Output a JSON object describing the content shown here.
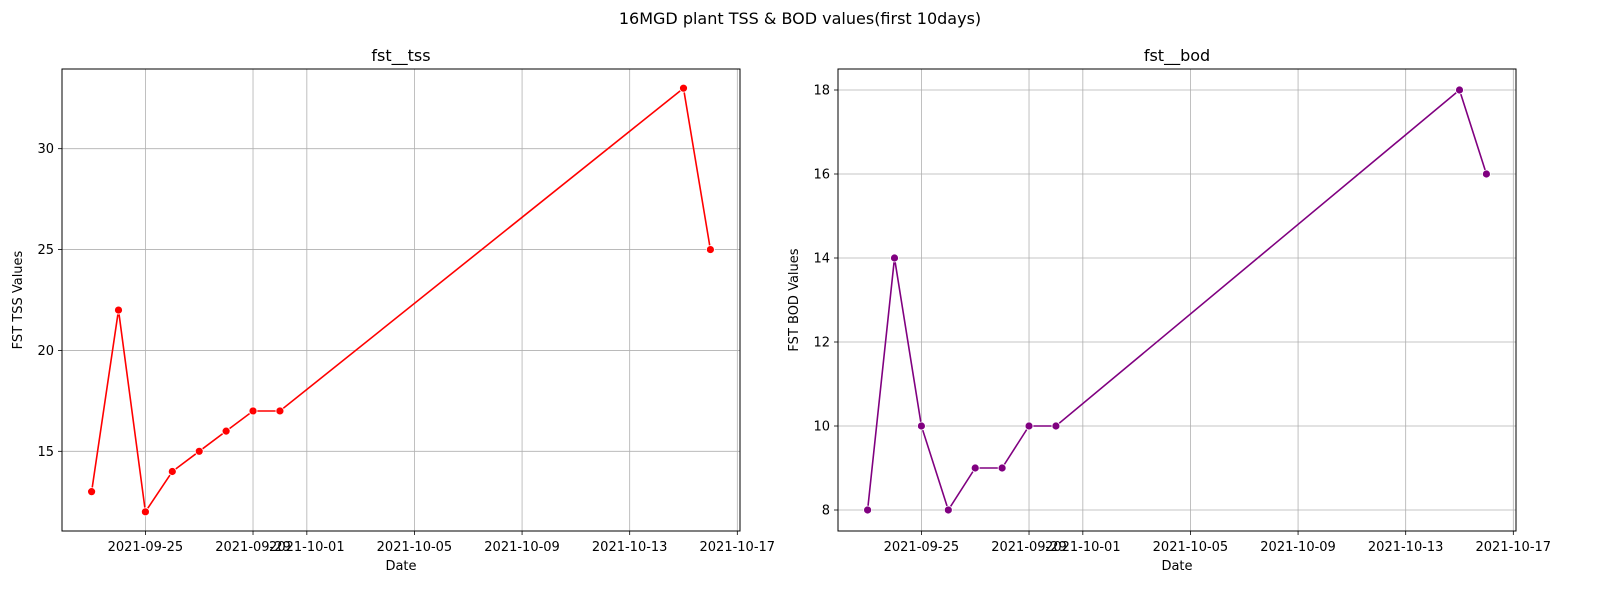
{
  "figure": {
    "suptitle": "16MGD plant TSS & BOD values(first 10days)"
  },
  "chart_data": [
    {
      "type": "line",
      "title": "fst__tss",
      "xlabel": "Date",
      "ylabel": "FST TSS Values",
      "x_ticks": [
        "2021-09-25",
        "2021-09-29",
        "2021-10-01",
        "2021-10-05",
        "2021-10-09",
        "2021-10-13",
        "2021-10-17"
      ],
      "y_ticks": [
        15,
        20,
        25,
        30
      ],
      "xlim": [
        "2021-09-21T21:36",
        "2021-10-17T02:24"
      ],
      "ylim": [
        11.05,
        33.95
      ],
      "grid": true,
      "series": [
        {
          "color": "#ff0000",
          "x": [
            "2021-09-23",
            "2021-09-24",
            "2021-09-25",
            "2021-09-26",
            "2021-09-27",
            "2021-09-28",
            "2021-09-29",
            "2021-09-30",
            "2021-10-15",
            "2021-10-16"
          ],
          "y": [
            13,
            22,
            12,
            14,
            15,
            16,
            17,
            17,
            33,
            25
          ]
        }
      ]
    },
    {
      "type": "line",
      "title": "fst__bod",
      "xlabel": "Date",
      "ylabel": "FST BOD Values",
      "x_ticks": [
        "2021-09-25",
        "2021-09-29",
        "2021-10-01",
        "2021-10-05",
        "2021-10-09",
        "2021-10-13",
        "2021-10-17"
      ],
      "y_ticks": [
        8,
        10,
        12,
        14,
        16,
        18
      ],
      "xlim": [
        "2021-09-21T21:36",
        "2021-10-17T02:24"
      ],
      "ylim": [
        7.5,
        18.5
      ],
      "grid": true,
      "series": [
        {
          "color": "#800080",
          "x": [
            "2021-09-23",
            "2021-09-24",
            "2021-09-25",
            "2021-09-26",
            "2021-09-27",
            "2021-09-28",
            "2021-09-29",
            "2021-09-30",
            "2021-10-15",
            "2021-10-16"
          ],
          "y": [
            8,
            14,
            10,
            8,
            9,
            9,
            10,
            10,
            18,
            16
          ]
        }
      ]
    }
  ]
}
